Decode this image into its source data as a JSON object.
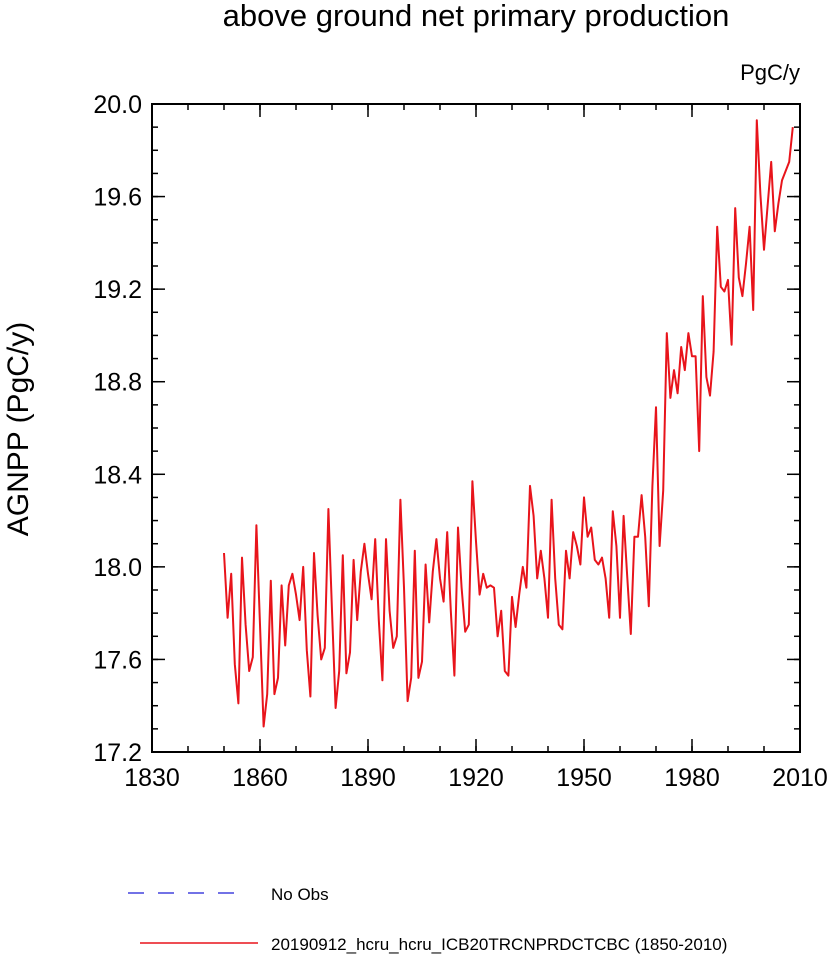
{
  "chart_data": {
    "type": "line",
    "title": "above ground net primary production",
    "units_label": "PgC/y",
    "ylabel": "AGNPP  (PgC/y)",
    "xlabel": "",
    "xlim": [
      1830,
      2010
    ],
    "ylim": [
      17.2,
      20.0
    ],
    "x_ticks": [
      1830,
      1860,
      1890,
      1920,
      1950,
      1980,
      2010
    ],
    "y_ticks": [
      17.2,
      17.6,
      18.0,
      18.4,
      18.8,
      19.2,
      19.6,
      20.0
    ],
    "y_tick_labels": [
      "17.2",
      "17.6",
      "18.0",
      "18.4",
      "18.8",
      "19.2",
      "19.6",
      "20.0"
    ],
    "grid": false,
    "legend": [
      {
        "label": "No Obs",
        "color": "#1f1fd6",
        "dash": "dashed"
      },
      {
        "label": "20190912_hcru_hcru_ICB20TRCNPRDCTCBC (1850-2010)",
        "color": "#e8141b",
        "dash": "solid"
      }
    ],
    "series": [
      {
        "name": "20190912_hcru_hcru_ICB20TRCNPRDCTCBC (1850-2010)",
        "color": "#e8141b",
        "x_start": 1850,
        "x_step": 1,
        "values": [
          18.06,
          17.78,
          17.97,
          17.58,
          17.41,
          18.04,
          17.75,
          17.55,
          17.61,
          18.18,
          17.75,
          17.31,
          17.45,
          17.94,
          17.45,
          17.52,
          17.92,
          17.66,
          17.92,
          17.97,
          17.88,
          17.77,
          18.0,
          17.64,
          17.44,
          18.06,
          17.79,
          17.6,
          17.65,
          18.25,
          17.81,
          17.39,
          17.55,
          18.05,
          17.54,
          17.63,
          18.03,
          17.77,
          17.98,
          18.1,
          17.97,
          17.86,
          18.12,
          17.77,
          17.51,
          18.12,
          17.81,
          17.65,
          17.7,
          18.29,
          17.91,
          17.42,
          17.52,
          18.07,
          17.52,
          17.59,
          18.01,
          17.76,
          17.98,
          18.12,
          17.95,
          17.85,
          18.15,
          17.81,
          17.53,
          18.17,
          17.91,
          17.72,
          17.75,
          18.37,
          18.11,
          17.88,
          17.97,
          17.91,
          17.92,
          17.91,
          17.7,
          17.81,
          17.55,
          17.53,
          17.87,
          17.74,
          17.88,
          18.0,
          17.91,
          18.35,
          18.22,
          17.95,
          18.07,
          17.95,
          17.78,
          18.29,
          17.95,
          17.75,
          17.73,
          18.07,
          17.95,
          18.15,
          18.09,
          18.01,
          18.3,
          18.13,
          18.17,
          18.03,
          18.01,
          18.04,
          17.95,
          17.78,
          18.24,
          18.09,
          17.78,
          18.22,
          17.96,
          17.71,
          18.13,
          18.13,
          18.31,
          18.13,
          17.83,
          18.35,
          18.69,
          18.09,
          18.33,
          19.01,
          18.73,
          18.85,
          18.75,
          18.95,
          18.85,
          19.01,
          18.91,
          18.91,
          18.5,
          19.17,
          18.82,
          18.74,
          18.93,
          19.47,
          19.21,
          19.19,
          19.24,
          18.96,
          19.55,
          19.25,
          19.17,
          19.31,
          19.47,
          19.11,
          19.93,
          19.61,
          19.37,
          19.56,
          19.75,
          19.45,
          19.57,
          19.67,
          19.71,
          19.75,
          19.9
        ]
      }
    ]
  }
}
